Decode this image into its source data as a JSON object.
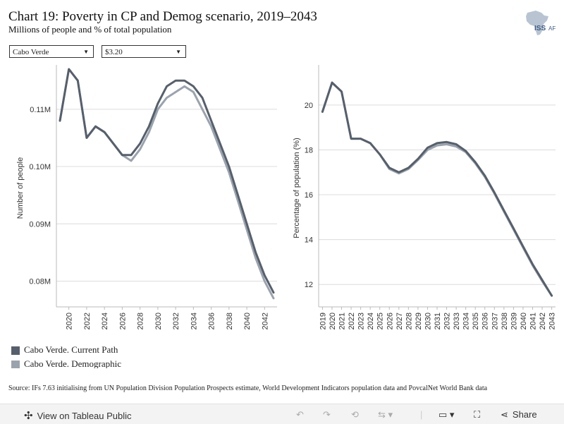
{
  "header": {
    "title": "Chart 19: Poverty in CP and Demog scenario, 2019–2043",
    "subtitle": "Millions of people and % of total population",
    "logo_text": "ISS AF"
  },
  "filters": {
    "country": "Cabo Verde",
    "poverty_line": "$3.20"
  },
  "legend": [
    {
      "label": "Cabo Verde. Current Path",
      "color": "#56606c"
    },
    {
      "label": "Cabo Verde. Demographic",
      "color": "#9aa3ad"
    }
  ],
  "source": "Source: IFs 7.63 initialising from UN Population Division Population Prospects estimate, World Development Indicators population data and PovcalNet World Bank data",
  "footer": {
    "view_label": "View on Tableau Public",
    "share_label": "Share"
  },
  "chart_data": [
    {
      "type": "line",
      "ylabel": "Number of people",
      "ylim": [
        0.0755,
        0.117
      ],
      "yticks": [
        0.08,
        0.09,
        0.1,
        0.11
      ],
      "ytick_labels": [
        "0.08M",
        "0.09M",
        "0.10M",
        "0.11M"
      ],
      "x": [
        2019,
        2020,
        2021,
        2022,
        2023,
        2024,
        2025,
        2026,
        2027,
        2028,
        2029,
        2030,
        2031,
        2032,
        2033,
        2034,
        2035,
        2036,
        2037,
        2038,
        2039,
        2040,
        2041,
        2042,
        2043
      ],
      "xtick_labels": [
        "2020",
        "2022",
        "2024",
        "2026",
        "2028",
        "2030",
        "2032",
        "2034",
        "2036",
        "2038",
        "2040",
        "2042"
      ],
      "xlim": [
        2018.6,
        2043.4
      ],
      "grid": "horizontal",
      "series": [
        {
          "name": "Cabo Verde. Current Path",
          "color": "#56606c",
          "values": [
            0.108,
            0.117,
            0.115,
            0.105,
            0.107,
            0.106,
            0.104,
            0.102,
            0.102,
            0.104,
            0.107,
            0.111,
            0.114,
            0.115,
            0.115,
            0.114,
            0.112,
            0.108,
            0.104,
            0.1,
            0.095,
            0.09,
            0.085,
            0.081,
            0.078
          ]
        },
        {
          "name": "Cabo Verde. Demographic",
          "color": "#9aa3ad",
          "values": [
            0.108,
            0.117,
            0.115,
            0.105,
            0.107,
            0.106,
            0.104,
            0.102,
            0.101,
            0.103,
            0.106,
            0.11,
            0.112,
            0.113,
            0.114,
            0.113,
            0.11,
            0.107,
            0.103,
            0.099,
            0.094,
            0.089,
            0.084,
            0.08,
            0.077
          ]
        }
      ]
    },
    {
      "type": "line",
      "ylabel": "Percentage of population (%)",
      "ylim": [
        11,
        21.6
      ],
      "yticks": [
        12,
        14,
        16,
        18,
        20
      ],
      "ytick_labels": [
        "12",
        "14",
        "16",
        "18",
        "20"
      ],
      "x": [
        2019,
        2020,
        2021,
        2022,
        2023,
        2024,
        2025,
        2026,
        2027,
        2028,
        2029,
        2030,
        2031,
        2032,
        2033,
        2034,
        2035,
        2036,
        2037,
        2038,
        2039,
        2040,
        2041,
        2042,
        2043
      ],
      "xtick_labels": [
        "2019",
        "2020",
        "2021",
        "2022",
        "2023",
        "2024",
        "2025",
        "2026",
        "2027",
        "2028",
        "2029",
        "2030",
        "2031",
        "2032",
        "2033",
        "2034",
        "2035",
        "2036",
        "2037",
        "2038",
        "2039",
        "2040",
        "2041",
        "2042",
        "2043"
      ],
      "xlim": [
        2018.6,
        2043.4
      ],
      "grid": "horizontal",
      "series": [
        {
          "name": "Cabo Verde. Current Path",
          "color": "#56606c",
          "values": [
            19.7,
            21.0,
            20.6,
            18.5,
            18.5,
            18.3,
            17.8,
            17.2,
            17.0,
            17.2,
            17.6,
            18.1,
            18.3,
            18.35,
            18.25,
            17.95,
            17.45,
            16.85,
            16.1,
            15.3,
            14.5,
            13.7,
            12.9,
            12.2,
            11.5
          ]
        },
        {
          "name": "Cabo Verde. Demographic",
          "color": "#9aa3ad",
          "values": [
            19.7,
            21.0,
            20.6,
            18.5,
            18.5,
            18.3,
            17.8,
            17.15,
            16.95,
            17.15,
            17.55,
            18.0,
            18.2,
            18.25,
            18.15,
            17.9,
            17.4,
            16.8,
            16.05,
            15.25,
            14.45,
            13.65,
            12.85,
            12.15,
            11.5
          ]
        }
      ]
    }
  ]
}
